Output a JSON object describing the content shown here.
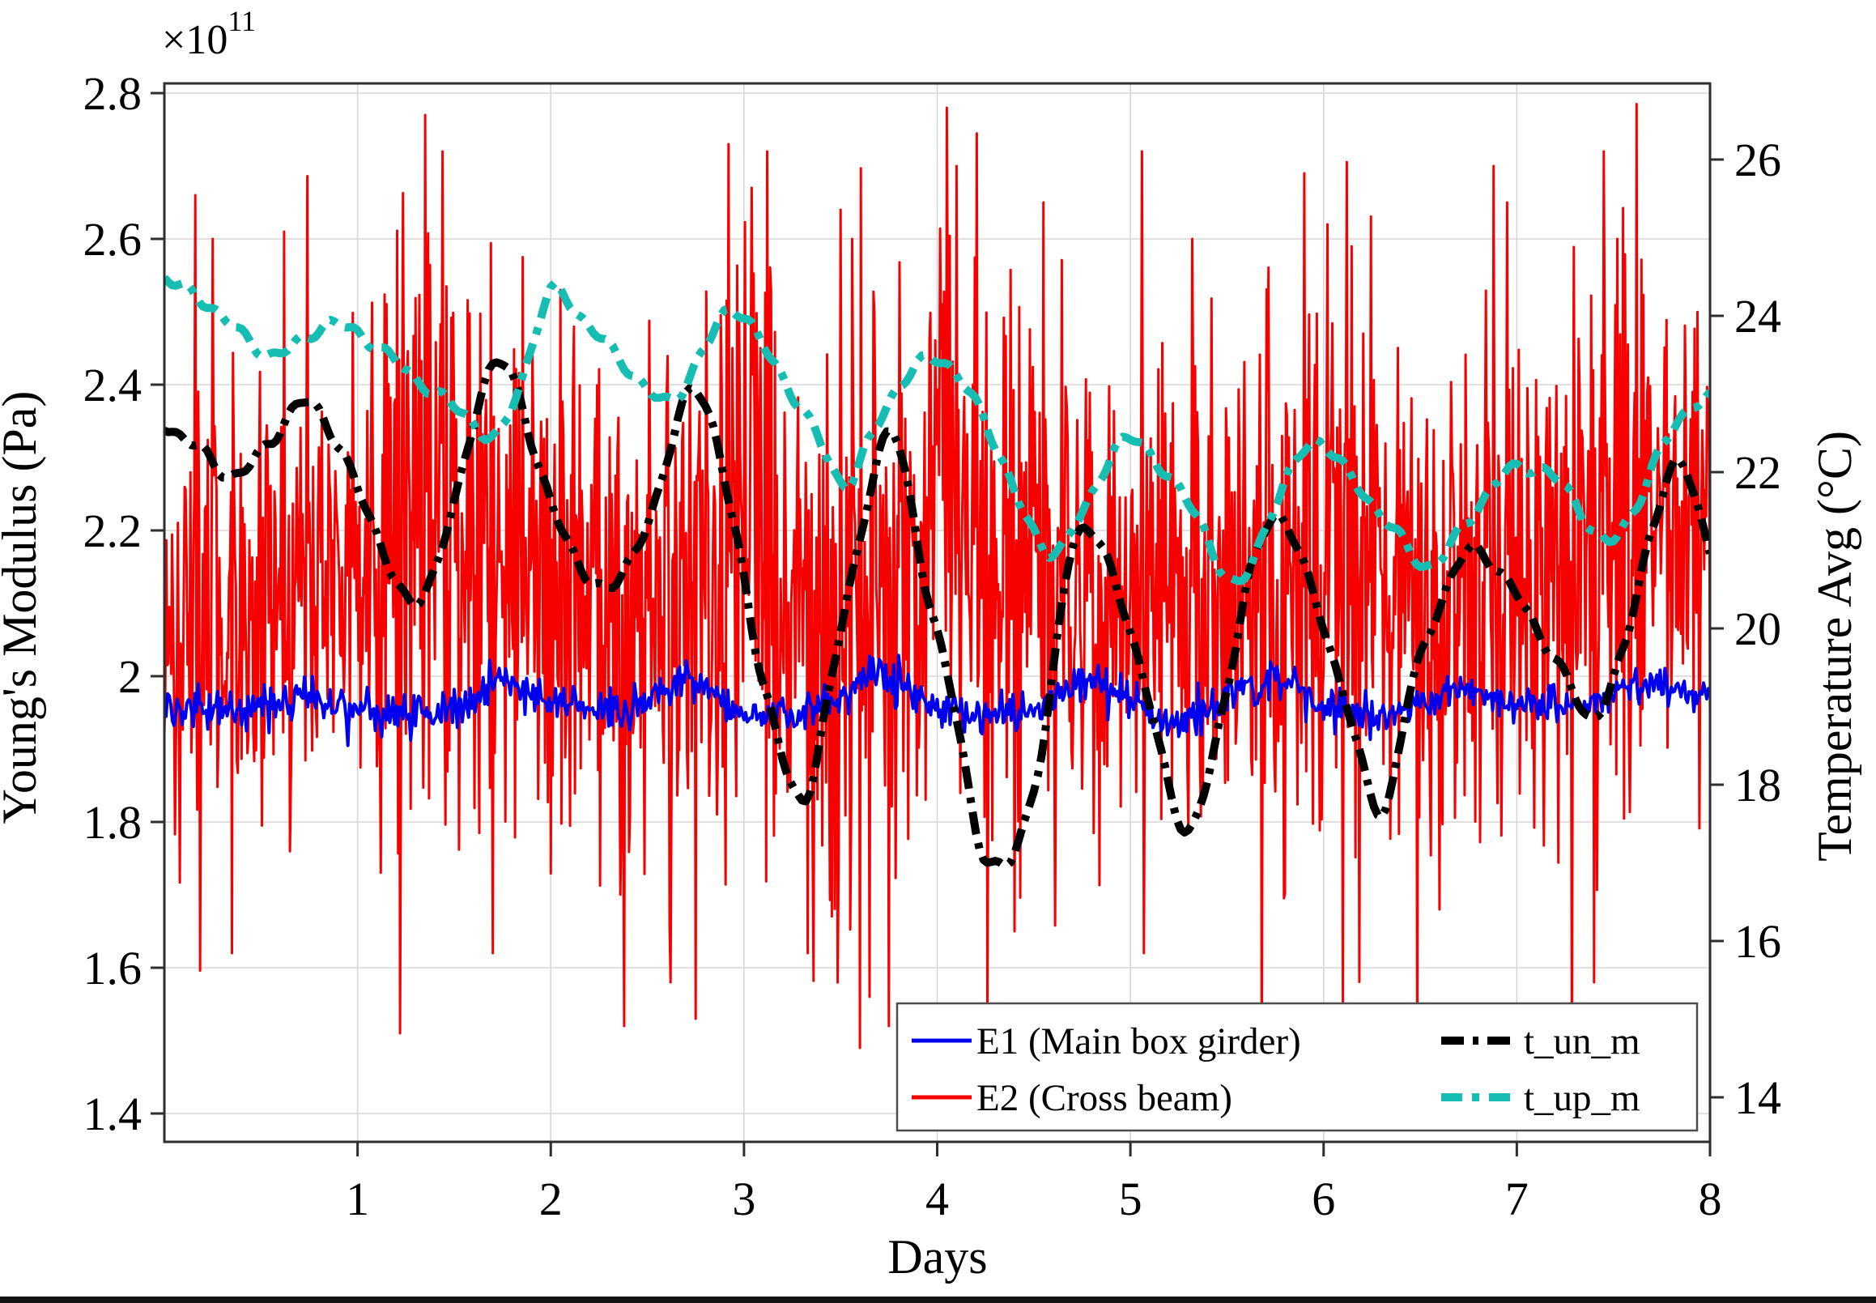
{
  "chart_data": {
    "type": "line",
    "title": "",
    "xlabel": "Days",
    "x_axis": {
      "ticks": [
        1,
        2,
        3,
        4,
        5,
        6,
        7,
        8
      ],
      "range": [
        0,
        8
      ],
      "grid": true
    },
    "left_axis": {
      "label": "Young's Modulus (Pa)",
      "offset_base": "×10",
      "offset_exp": "11",
      "tick_labels": [
        "2.8",
        "2.6",
        "2.4",
        "2.2",
        "2",
        "1.8",
        "1.6",
        "1.4"
      ],
      "tick_values": [
        2.8,
        2.6,
        2.4,
        2.2,
        2.0,
        1.8,
        1.6,
        1.4
      ],
      "range": [
        1.361,
        2.813
      ],
      "unit_scale": "1e11",
      "grid": true
    },
    "right_axis": {
      "label": "Temperature Avg (°C)",
      "tick_labels": [
        "26",
        "24",
        "22",
        "20",
        "18",
        "16",
        "14"
      ],
      "tick_values": [
        26,
        24,
        22,
        20,
        18,
        16,
        14
      ],
      "range": [
        13.43,
        26.95
      ],
      "grid": false
    },
    "series": [
      {
        "name": "E1 (Main box girder)",
        "color": "#0000ee",
        "axis": "left",
        "style": "solid",
        "line_width": 4,
        "samples_per_day": 120,
        "seed": 71,
        "noise_sd": 0.013,
        "mean_points": [
          [
            0,
            1.96
          ],
          [
            0.4,
            1.949
          ],
          [
            0.75,
            1.972
          ],
          [
            1.1,
            1.95
          ],
          [
            1.45,
            1.953
          ],
          [
            1.75,
            2.0
          ],
          [
            2.1,
            1.955
          ],
          [
            2.4,
            1.95
          ],
          [
            2.7,
            2.0
          ],
          [
            3.0,
            1.945
          ],
          [
            3.35,
            1.953
          ],
          [
            3.7,
            2.003
          ],
          [
            4.05,
            1.95
          ],
          [
            4.4,
            1.946
          ],
          [
            4.8,
            1.992
          ],
          [
            5.25,
            1.933
          ],
          [
            5.75,
            2.0
          ],
          [
            6.2,
            1.933
          ],
          [
            6.7,
            1.988
          ],
          [
            7.0,
            1.963
          ],
          [
            7.35,
            1.958
          ],
          [
            7.7,
            1.993
          ],
          [
            8,
            1.975
          ]
        ]
      },
      {
        "name": "E2 (Cross beam)",
        "color": "#f70000",
        "axis": "left",
        "style": "solid",
        "line_width": 3,
        "samples_per_day": 200,
        "seed": 137,
        "mean_points": [
          [
            0,
            2.07
          ],
          [
            0.5,
            2.1
          ],
          [
            1.0,
            2.14
          ],
          [
            1.5,
            2.18
          ],
          [
            2.0,
            2.13
          ],
          [
            2.5,
            2.08
          ],
          [
            3.0,
            2.18
          ],
          [
            3.5,
            2.02
          ],
          [
            4.0,
            2.24
          ],
          [
            4.5,
            2.18
          ],
          [
            5.0,
            2.1
          ],
          [
            5.5,
            2.1
          ],
          [
            6.0,
            2.14
          ],
          [
            6.5,
            2.08
          ],
          [
            7.0,
            2.1
          ],
          [
            7.5,
            2.18
          ],
          [
            8.0,
            2.18
          ]
        ],
        "amp_points": [
          [
            0,
            0.3
          ],
          [
            0.5,
            0.36
          ],
          [
            1.0,
            0.44
          ],
          [
            1.5,
            0.5
          ],
          [
            2.0,
            0.4
          ],
          [
            2.5,
            0.42
          ],
          [
            3.0,
            0.5
          ],
          [
            3.5,
            0.46
          ],
          [
            4.0,
            0.5
          ],
          [
            4.5,
            0.44
          ],
          [
            5.0,
            0.38
          ],
          [
            5.5,
            0.42
          ],
          [
            6.0,
            0.5
          ],
          [
            6.5,
            0.34
          ],
          [
            7.0,
            0.4
          ],
          [
            7.5,
            0.46
          ],
          [
            8.0,
            0.34
          ]
        ],
        "spikes_high": [
          [
            0.16,
            2.66
          ],
          [
            0.25,
            2.6
          ],
          [
            0.62,
            2.61
          ],
          [
            1.35,
            2.77
          ],
          [
            1.44,
            2.72
          ],
          [
            2.05,
            2.53
          ],
          [
            2.92,
            2.73
          ],
          [
            3.12,
            2.72
          ],
          [
            3.5,
            2.64
          ],
          [
            3.56,
            2.6
          ],
          [
            4.05,
            2.78
          ],
          [
            4.1,
            2.7
          ],
          [
            4.55,
            2.65
          ],
          [
            5.06,
            2.72
          ],
          [
            5.32,
            2.6
          ],
          [
            5.9,
            2.69
          ],
          [
            6.02,
            2.62
          ],
          [
            6.88,
            2.7
          ],
          [
            6.95,
            2.65
          ],
          [
            7.45,
            2.72
          ],
          [
            7.52,
            2.6
          ]
        ],
        "spikes_low": [
          [
            0.35,
            1.62
          ],
          [
            1.22,
            1.51
          ],
          [
            1.7,
            1.62
          ],
          [
            2.38,
            1.52
          ],
          [
            2.62,
            1.58
          ],
          [
            2.75,
            1.53
          ],
          [
            3.33,
            1.62
          ],
          [
            3.6,
            1.49
          ],
          [
            3.65,
            1.56
          ],
          [
            3.75,
            1.52
          ],
          [
            4.4,
            1.65
          ],
          [
            5.07,
            1.62
          ],
          [
            6.1,
            1.55
          ],
          [
            6.6,
            1.68
          ],
          [
            7.4,
            1.58
          ]
        ]
      },
      {
        "name": "t_un_m",
        "color": "#000000",
        "axis": "right",
        "style": "dashdot",
        "line_width": 10,
        "seed": 5,
        "points": [
          [
            0,
            22.6
          ],
          [
            0.18,
            22.3
          ],
          [
            0.36,
            21.95
          ],
          [
            0.55,
            22.4
          ],
          [
            0.73,
            22.9
          ],
          [
            0.9,
            22.35
          ],
          [
            1.1,
            21.2
          ],
          [
            1.3,
            20.3
          ],
          [
            1.5,
            21.6
          ],
          [
            1.72,
            23.45
          ],
          [
            1.95,
            22.0
          ],
          [
            2.1,
            21.0
          ],
          [
            2.2,
            20.65
          ],
          [
            2.35,
            20.6
          ],
          [
            2.55,
            21.7
          ],
          [
            2.75,
            23.1
          ],
          [
            2.95,
            21.3
          ],
          [
            3.1,
            19.3
          ],
          [
            3.3,
            17.8
          ],
          [
            3.42,
            18.9
          ],
          [
            3.55,
            20.6
          ],
          [
            3.77,
            22.5
          ],
          [
            3.95,
            20.4
          ],
          [
            4.1,
            18.9
          ],
          [
            4.22,
            17.2
          ],
          [
            4.32,
            16.95
          ],
          [
            4.42,
            17.3
          ],
          [
            4.55,
            18.5
          ],
          [
            4.68,
            20.9
          ],
          [
            4.8,
            21.2
          ],
          [
            4.95,
            20.4
          ],
          [
            5.1,
            19.0
          ],
          [
            5.3,
            17.4
          ],
          [
            5.48,
            19.0
          ],
          [
            5.62,
            20.7
          ],
          [
            5.77,
            21.45
          ],
          [
            5.95,
            20.4
          ],
          [
            6.1,
            19.2
          ],
          [
            6.3,
            17.65
          ],
          [
            6.45,
            19.2
          ],
          [
            6.6,
            20.3
          ],
          [
            6.76,
            21.0
          ],
          [
            6.95,
            20.6
          ],
          [
            7.1,
            20.0
          ],
          [
            7.25,
            19.4
          ],
          [
            7.38,
            18.85
          ],
          [
            7.55,
            19.7
          ],
          [
            7.7,
            21.3
          ],
          [
            7.85,
            22.1
          ],
          [
            8,
            21.0
          ]
        ]
      },
      {
        "name": "t_up_m",
        "color": "#15bdb2",
        "axis": "right",
        "style": "dashdot",
        "line_width": 10,
        "seed": 9,
        "points": [
          [
            0,
            24.5
          ],
          [
            0.25,
            24.1
          ],
          [
            0.45,
            23.65
          ],
          [
            0.57,
            23.5
          ],
          [
            0.72,
            23.7
          ],
          [
            0.85,
            23.9
          ],
          [
            1.05,
            23.7
          ],
          [
            1.3,
            23.2
          ],
          [
            1.55,
            22.75
          ],
          [
            1.72,
            22.45
          ],
          [
            1.85,
            23.2
          ],
          [
            2.0,
            24.3
          ],
          [
            2.15,
            24.0
          ],
          [
            2.45,
            23.2
          ],
          [
            2.62,
            22.9
          ],
          [
            2.8,
            23.6
          ],
          [
            2.95,
            24.1
          ],
          [
            3.15,
            23.4
          ],
          [
            3.35,
            22.6
          ],
          [
            3.52,
            21.85
          ],
          [
            3.65,
            22.4
          ],
          [
            3.8,
            23.1
          ],
          [
            3.97,
            23.45
          ],
          [
            4.12,
            23.2
          ],
          [
            4.32,
            22.25
          ],
          [
            4.56,
            21.0
          ],
          [
            4.76,
            21.5
          ],
          [
            4.95,
            22.4
          ],
          [
            5.15,
            22.1
          ],
          [
            5.35,
            21.4
          ],
          [
            5.55,
            20.55
          ],
          [
            5.75,
            21.6
          ],
          [
            5.95,
            22.4
          ],
          [
            6.15,
            21.9
          ],
          [
            6.35,
            21.3
          ],
          [
            6.55,
            20.8
          ],
          [
            6.75,
            21.4
          ],
          [
            6.95,
            22.0
          ],
          [
            7.1,
            22.05
          ],
          [
            7.25,
            21.8
          ],
          [
            7.46,
            21.1
          ],
          [
            7.6,
            21.5
          ],
          [
            7.75,
            22.3
          ],
          [
            7.9,
            22.85
          ],
          [
            8,
            22.95
          ]
        ]
      }
    ],
    "legend": {
      "position": "bottom-right",
      "items": [
        {
          "label": "E1 (Main box girder)",
          "color": "#0000ee",
          "style": "solid"
        },
        {
          "label": "E2 (Cross beam)",
          "color": "#f70000",
          "style": "solid"
        },
        {
          "label": "t_un_m",
          "color": "#000000",
          "style": "dashdot"
        },
        {
          "label": "t_up_m",
          "color": "#15bdb2",
          "style": "dashdot"
        }
      ]
    },
    "colors": {
      "grid": "#d6d6d6",
      "spine": "#2e2e2e",
      "background": "#ffffff"
    }
  }
}
